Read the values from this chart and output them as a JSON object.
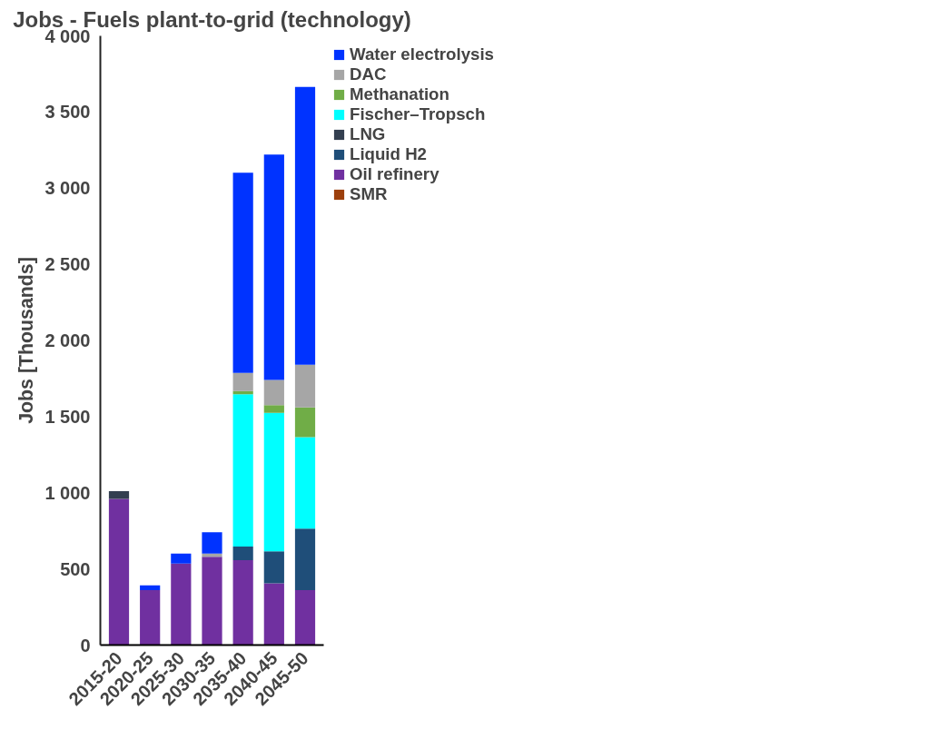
{
  "chart_data": {
    "type": "bar",
    "stacked": true,
    "title": "Jobs - Fuels plant-to-grid (technology)",
    "ylabel": "Jobs [Thousands]",
    "categories": [
      "2015-20",
      "2020-25",
      "2025-30",
      "2030-35",
      "2035-40",
      "2040-45",
      "2045-50"
    ],
    "series": [
      {
        "name": "SMR",
        "color": "#9c3f0c",
        "values": [
          0,
          0,
          0,
          0,
          0,
          0,
          0
        ]
      },
      {
        "name": "Oil refinery",
        "color": "#7030a0",
        "values": [
          960,
          360,
          535,
          580,
          557,
          405,
          360
        ]
      },
      {
        "name": "Liquid H2",
        "color": "#1f4e79",
        "values": [
          0,
          0,
          0,
          0,
          90,
          210,
          405
        ]
      },
      {
        "name": "LNG",
        "color": "#333f50",
        "values": [
          50,
          0,
          0,
          0,
          0,
          0,
          0
        ]
      },
      {
        "name": "Fischer–Tropsch",
        "color": "#00ffff",
        "values": [
          0,
          0,
          0,
          0,
          1000,
          910,
          600
        ]
      },
      {
        "name": "Methanation",
        "color": "#70ad47",
        "values": [
          0,
          0,
          0,
          0,
          20,
          50,
          195
        ]
      },
      {
        "name": "DAC",
        "color": "#a6a6a6",
        "values": [
          0,
          0,
          0,
          20,
          120,
          165,
          280
        ]
      },
      {
        "name": "Water electrolysis",
        "color": "#0033ff",
        "values": [
          0,
          32,
          65,
          140,
          1315,
          1480,
          1825
        ]
      }
    ],
    "ylim": [
      0,
      4000
    ],
    "yticks": [
      0,
      500,
      {
        "value": 1000,
        "label": "1 000"
      },
      {
        "value": 1500,
        "label": "1 500"
      },
      {
        "value": 2000,
        "label": "2 000"
      },
      {
        "value": 2500,
        "label": "2 500"
      },
      {
        "value": 3000,
        "label": "3 000"
      },
      {
        "value": 3500,
        "label": "3 500"
      },
      {
        "value": 4000,
        "label": "4 000"
      }
    ],
    "grid": false,
    "legend": "top right"
  }
}
